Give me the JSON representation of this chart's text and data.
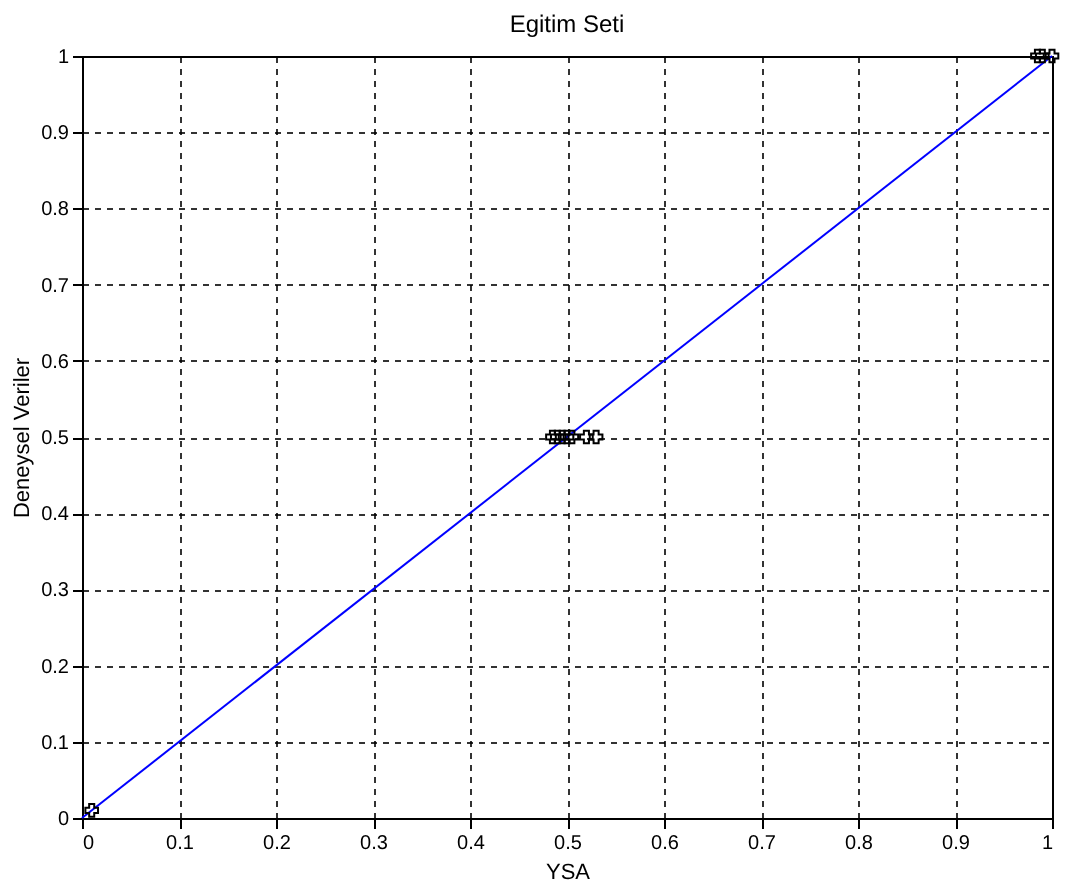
{
  "chart_data": {
    "type": "scatter",
    "title": "Egitim Seti",
    "xlabel": "YSA",
    "ylabel": "Deneysel Veriler",
    "xlim": [
      0,
      1
    ],
    "ylim": [
      0,
      1
    ],
    "xticks": [
      0,
      0.1,
      0.2,
      0.3,
      0.4,
      0.5,
      0.6,
      0.7,
      0.8,
      0.9,
      1
    ],
    "yticks": [
      0,
      0.1,
      0.2,
      0.3,
      0.4,
      0.5,
      0.6,
      0.7,
      0.8,
      0.9,
      1
    ],
    "grid": true,
    "legend": false,
    "series": [
      {
        "type": "line",
        "color": "#0000ff",
        "x": [
          0,
          1
        ],
        "values": [
          0,
          1
        ],
        "marker": "none",
        "line_style": "solid"
      },
      {
        "color": "#000000",
        "marker": "cross",
        "x": [
          0.01,
          0.485,
          0.49,
          0.495,
          0.5,
          0.505,
          0.52,
          0.53,
          0.985,
          0.99,
          1.0
        ],
        "values": [
          0.01,
          0.5,
          0.5,
          0.5,
          0.5,
          0.5,
          0.5,
          0.5,
          1,
          1,
          1
        ]
      }
    ]
  }
}
